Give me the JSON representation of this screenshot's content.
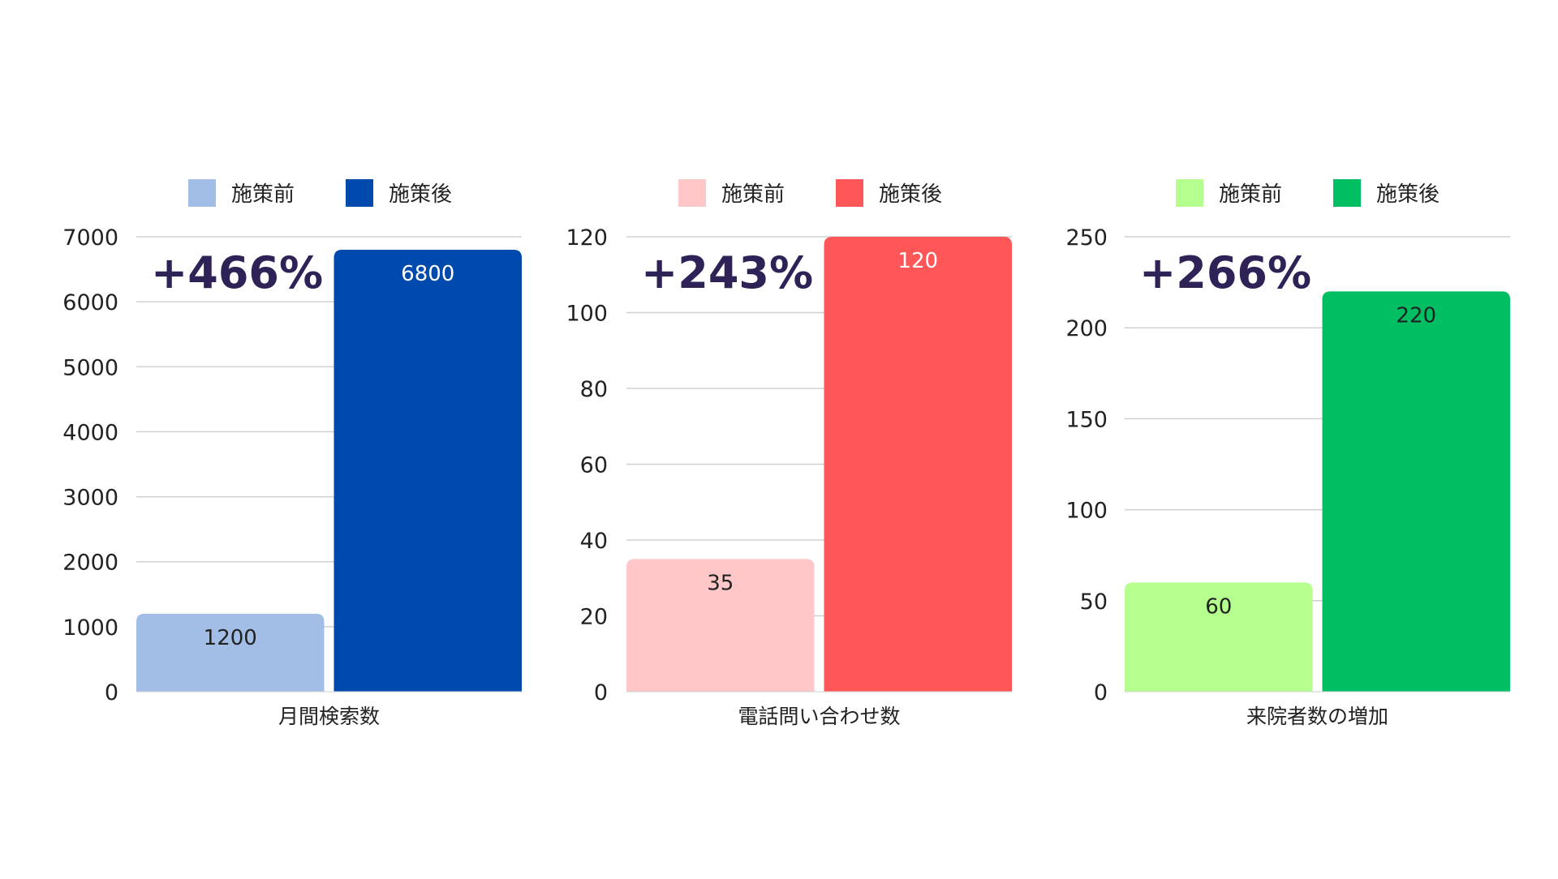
{
  "chart_data": [
    {
      "type": "bar",
      "categories": [
        "月間検索数"
      ],
      "series": [
        {
          "name": "施策前",
          "values": [
            1200
          ],
          "color": "#a2bde6"
        },
        {
          "name": "施策後",
          "values": [
            6800
          ],
          "color": "#004aad"
        }
      ],
      "ylim": [
        0,
        7000
      ],
      "yticks": [
        0,
        1000,
        2000,
        3000,
        4000,
        5000,
        6000,
        7000
      ],
      "data_labels": [
        "1200",
        "6800"
      ],
      "data_label_colors": [
        "#222222",
        "#ffffff"
      ],
      "annotation": "+466%",
      "legend_position": "top",
      "grid": true
    },
    {
      "type": "bar",
      "categories": [
        "電話問い合わせ数"
      ],
      "series": [
        {
          "name": "施策前",
          "values": [
            35
          ],
          "color": "#ffc7c7"
        },
        {
          "name": "施策後",
          "values": [
            120
          ],
          "color": "#ff5757"
        }
      ],
      "ylim": [
        0,
        120
      ],
      "yticks": [
        0,
        20,
        40,
        60,
        80,
        100,
        120
      ],
      "data_labels": [
        "35",
        "120"
      ],
      "data_label_colors": [
        "#222222",
        "#ffffff"
      ],
      "annotation": "+243%",
      "legend_position": "top",
      "grid": true
    },
    {
      "type": "bar",
      "categories": [
        "来院者数の増加"
      ],
      "series": [
        {
          "name": "施策前",
          "values": [
            60
          ],
          "color": "#b5ff8f"
        },
        {
          "name": "施策後",
          "values": [
            220
          ],
          "color": "#00bf63"
        }
      ],
      "ylim": [
        0,
        250
      ],
      "yticks": [
        0,
        50,
        100,
        150,
        200,
        250
      ],
      "data_labels": [
        "60",
        "220"
      ],
      "data_label_colors": [
        "#222222",
        "#222222"
      ],
      "annotation": "+266%",
      "legend_position": "top",
      "grid": true
    }
  ],
  "colors": {
    "annotation": "#2e2257",
    "axis_text": "#222222",
    "grid": "#d0d0d0"
  }
}
